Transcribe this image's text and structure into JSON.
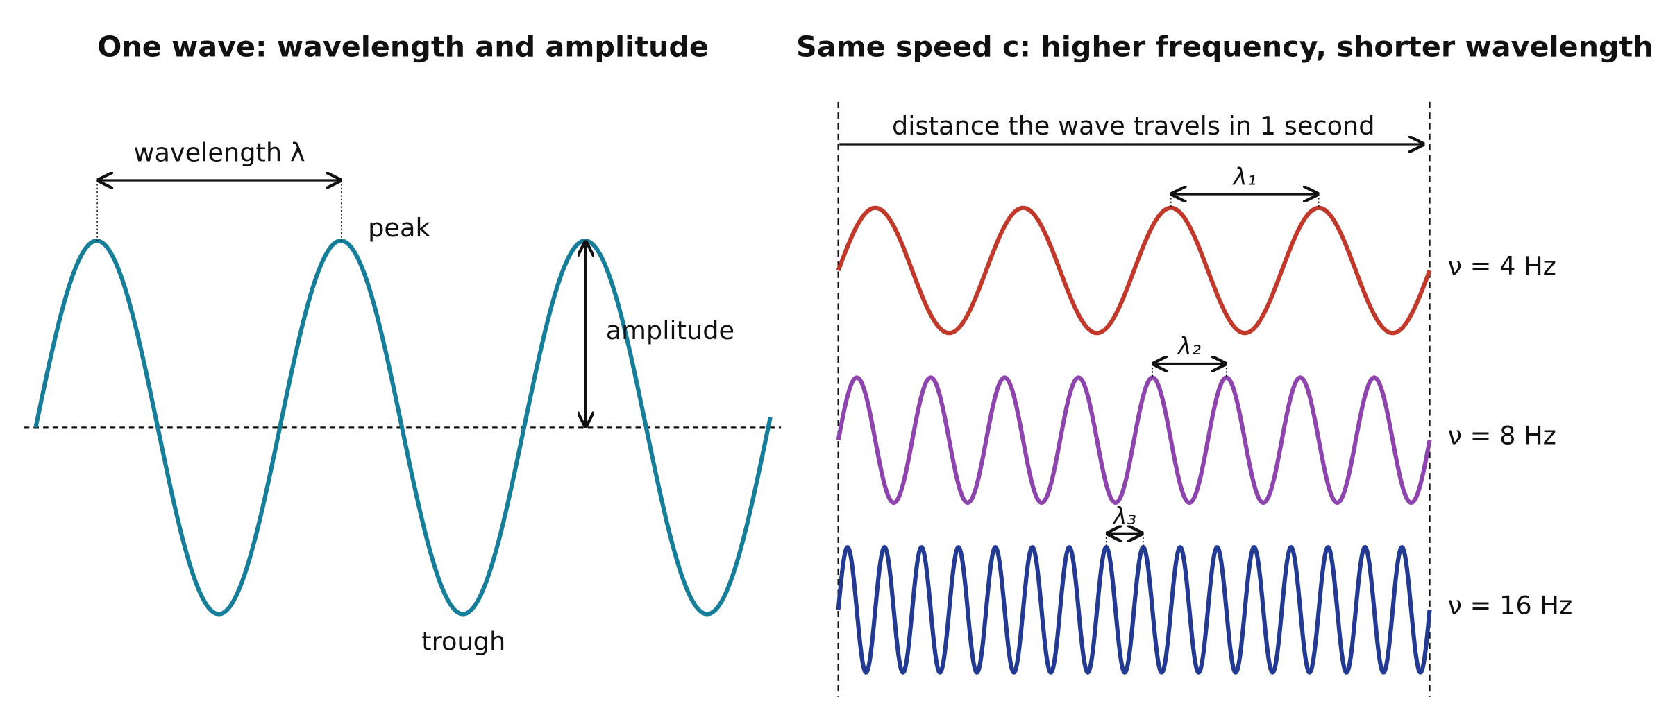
{
  "left": {
    "title": "One wave: wavelength and amplitude",
    "wavelength_label": "wavelength λ",
    "peak_label": "peak",
    "amplitude_label": "amplitude",
    "trough_label": "trough"
  },
  "right": {
    "title": "Same speed c: higher frequency, shorter wavelength",
    "distance_label": "distance the wave travels in 1 second",
    "waves": [
      {
        "frequency": 4,
        "label": "ν = 4 Hz",
        "lambda_label": "λ₁",
        "color": "#c0392b"
      },
      {
        "frequency": 8,
        "label": "ν = 8 Hz",
        "lambda_label": "λ₂",
        "color": "#8e44ad"
      },
      {
        "frequency": 16,
        "label": "ν = 16 Hz",
        "lambda_label": "λ₃",
        "color": "#233a93"
      }
    ]
  }
}
